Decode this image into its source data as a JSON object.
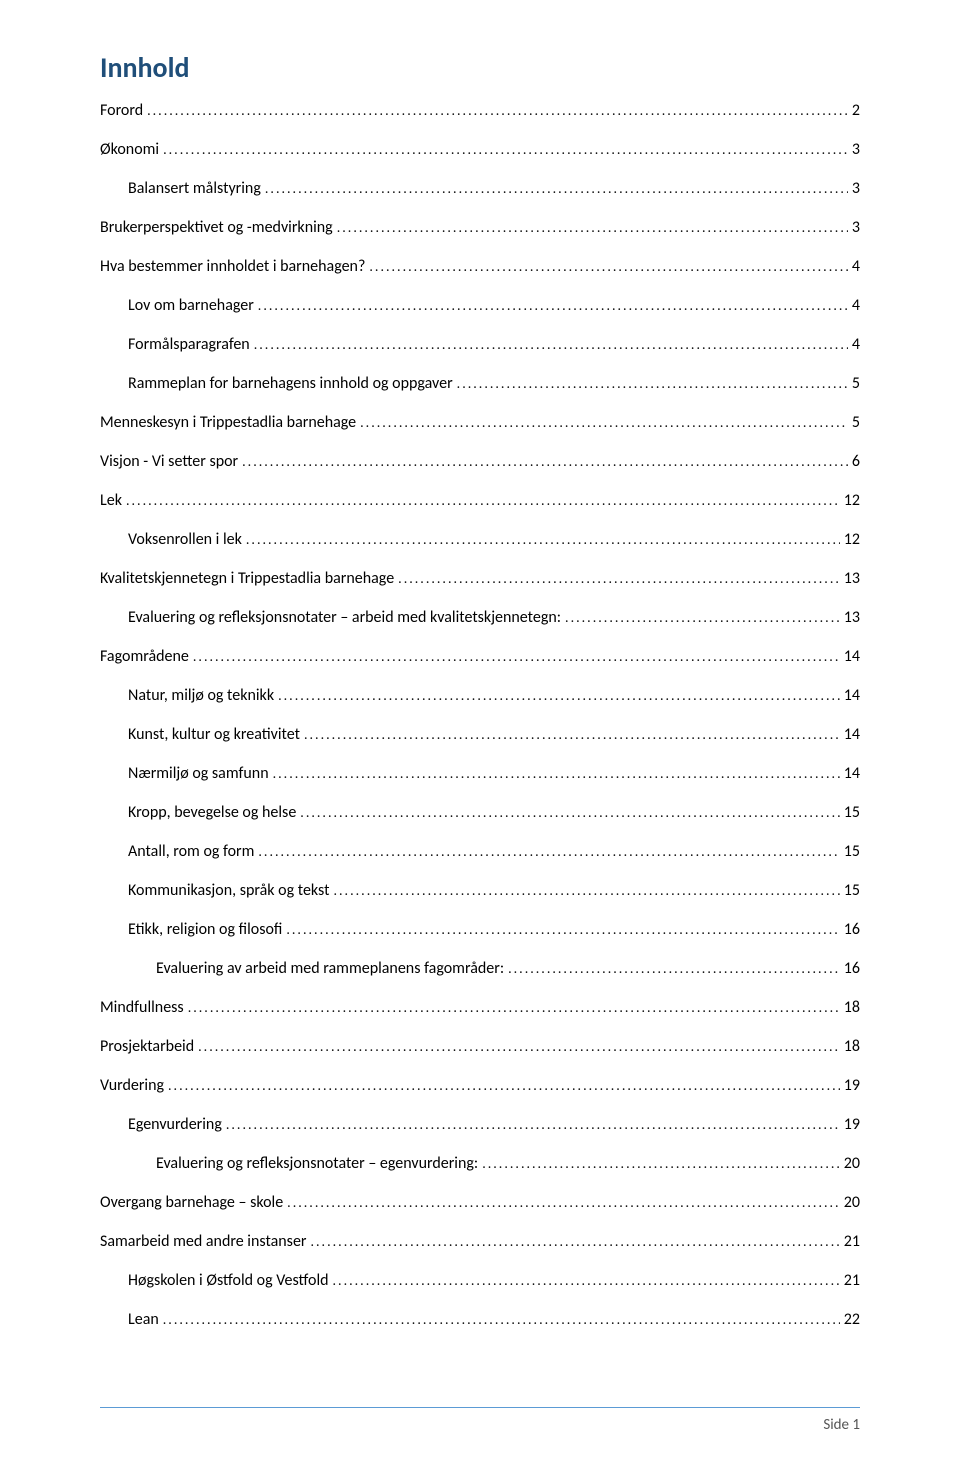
{
  "title": "Innhold",
  "title_color": "#1f4e79",
  "text_color": "#000000",
  "footer_line_color": "#5b9bd5",
  "page_footer": "Side 1",
  "entries": [
    {
      "label": "Forord",
      "page": "2",
      "indent": 0
    },
    {
      "label": "Økonomi",
      "page": "3",
      "indent": 0
    },
    {
      "label": "Balansert målstyring",
      "page": "3",
      "indent": 1
    },
    {
      "label": "Brukerperspektivet og -medvirkning",
      "page": "3",
      "indent": 0
    },
    {
      "label": "Hva bestemmer innholdet i barnehagen?",
      "page": "4",
      "indent": 0
    },
    {
      "label": "Lov om barnehager",
      "page": "4",
      "indent": 1
    },
    {
      "label": "Formålsparagrafen",
      "page": "4",
      "indent": 1
    },
    {
      "label": "Rammeplan for barnehagens innhold og oppgaver",
      "page": "5",
      "indent": 1
    },
    {
      "label": "Menneskesyn i Trippestadlia barnehage",
      "page": "5",
      "indent": 0
    },
    {
      "label": "Visjon - Vi setter spor",
      "page": "6",
      "indent": 0
    },
    {
      "label": "Lek",
      "page": "12",
      "indent": 0
    },
    {
      "label": "Voksenrollen i lek",
      "page": "12",
      "indent": 1
    },
    {
      "label": "Kvalitetskjennetegn i Trippestadlia barnehage",
      "page": "13",
      "indent": 0
    },
    {
      "label": "Evaluering og refleksjonsnotater – arbeid med kvalitetskjennetegn:",
      "page": "13",
      "indent": 1
    },
    {
      "label": "Fagområdene",
      "page": "14",
      "indent": 0
    },
    {
      "label": "Natur, miljø og teknikk",
      "page": "14",
      "indent": 1
    },
    {
      "label": "Kunst, kultur og kreativitet",
      "page": "14",
      "indent": 1
    },
    {
      "label": "Nærmiljø og samfunn",
      "page": "14",
      "indent": 1
    },
    {
      "label": "Kropp, bevegelse og helse",
      "page": "15",
      "indent": 1
    },
    {
      "label": "Antall, rom og form",
      "page": "15",
      "indent": 1
    },
    {
      "label": "Kommunikasjon, språk og tekst",
      "page": "15",
      "indent": 1
    },
    {
      "label": "Etikk, religion og filosofi",
      "page": "16",
      "indent": 1
    },
    {
      "label": "Evaluering av arbeid med rammeplanens fagområder:",
      "page": "16",
      "indent": 2
    },
    {
      "label": "Mindfullness",
      "page": "18",
      "indent": 0
    },
    {
      "label": "Prosjektarbeid",
      "page": "18",
      "indent": 0
    },
    {
      "label": "Vurdering",
      "page": "19",
      "indent": 0
    },
    {
      "label": "Egenvurdering",
      "page": "19",
      "indent": 1
    },
    {
      "label": "Evaluering og refleksjonsnotater – egenvurdering:",
      "page": "20",
      "indent": 2
    },
    {
      "label": "Overgang barnehage – skole",
      "page": "20",
      "indent": 0
    },
    {
      "label": "Samarbeid med andre instanser",
      "page": "21",
      "indent": 0
    },
    {
      "label": "Høgskolen i Østfold og Vestfold",
      "page": "21",
      "indent": 1
    },
    {
      "label": "Lean",
      "page": "22",
      "indent": 1
    }
  ]
}
